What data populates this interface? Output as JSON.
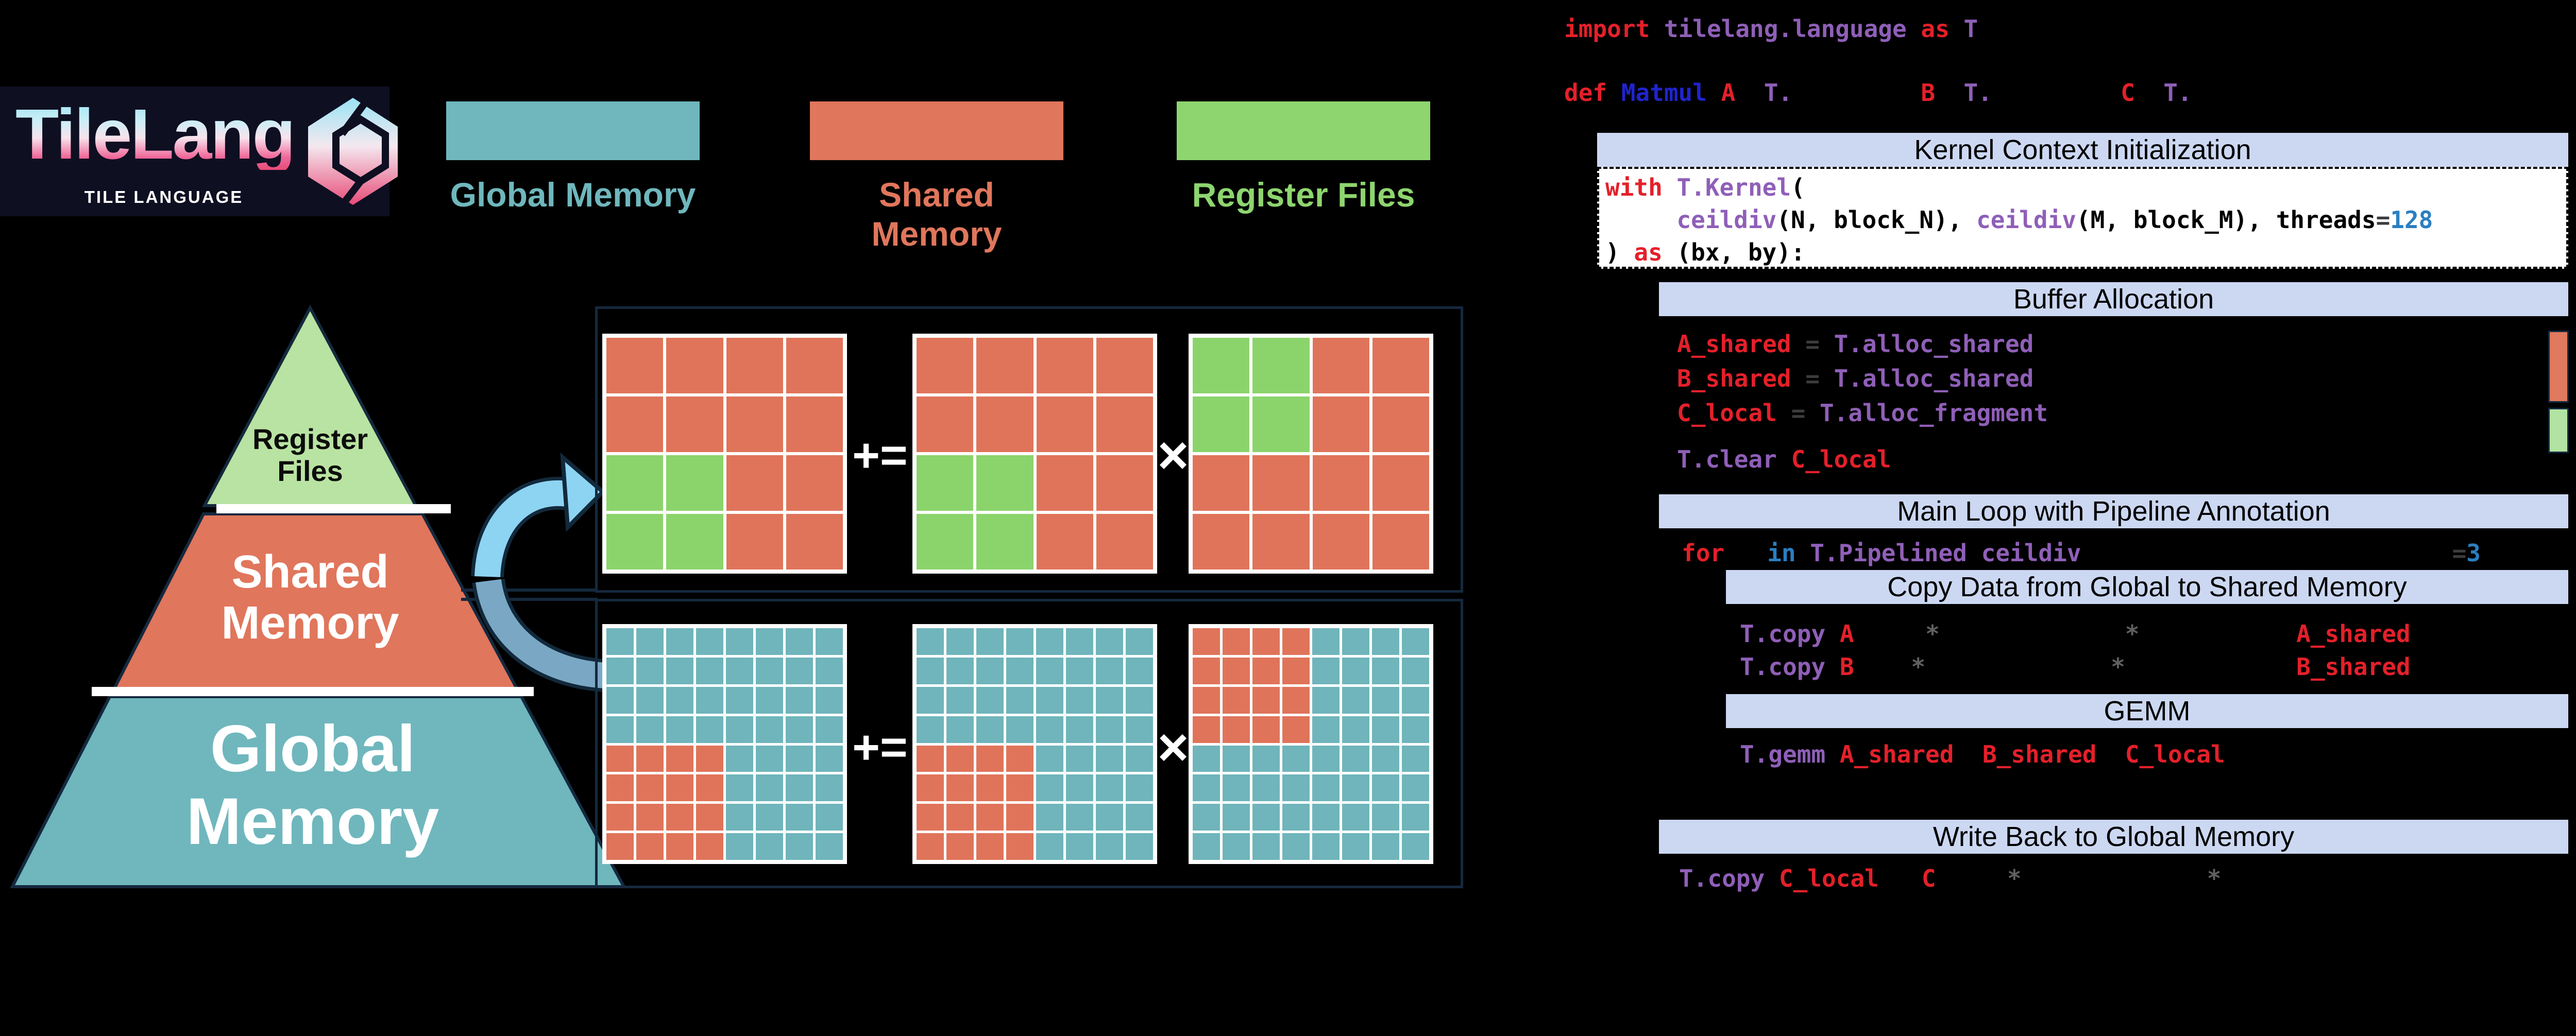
{
  "logo": {
    "title": "TileLang",
    "subtitle": "TILE LANGUAGE"
  },
  "legend": {
    "items": [
      {
        "label": "Global Memory",
        "color": "#6fb7bd"
      },
      {
        "label": "Shared Memory",
        "color": "#e0765c"
      },
      {
        "label": "Register Files",
        "color": "#8ed56f"
      }
    ]
  },
  "pyramid": {
    "levels": [
      {
        "label": "Register Files",
        "color": "#b9e3a2"
      },
      {
        "label": "Shared Memory",
        "color": "#e0765c"
      },
      {
        "label": "Global Memory",
        "color": "#6fb7bd"
      }
    ]
  },
  "diagram": {
    "operators": {
      "accumulate": "+=",
      "multiply": "×"
    },
    "cell_colors": {
      "S": "#e0745a",
      "G": "#8bd46b",
      "T": "#6fb5bb"
    },
    "top_row": {
      "matrices": [
        [
          "SSSS",
          "SSSS",
          "GGSS",
          "GGSS"
        ],
        [
          "SSSS",
          "SSSS",
          "GGSS",
          "GGSS"
        ],
        [
          "GGSS",
          "GGSS",
          "SSSS",
          "SSSS"
        ]
      ]
    },
    "bottom_row": {
      "matrices": [
        [
          "TTTTTTTT",
          "TTTTTTTT",
          "TTTTTTTT",
          "TTTTTTTT",
          "SSSSTTTT",
          "SSSSTTTT",
          "SSSSTTTT",
          "SSSSTTTT"
        ],
        [
          "TTTTTTTT",
          "TTTTTTTT",
          "TTTTTTTT",
          "TTTTTTTT",
          "SSSSTTTT",
          "SSSSTTTT",
          "SSSSTTTT",
          "SSSSTTTT"
        ],
        [
          "SSSSTTTT",
          "SSSSTTTT",
          "SSSSTTTT",
          "SSSSTTTT",
          "TTTTTTTT",
          "TTTTTTTT",
          "TTTTTTTT",
          "TTTTTTTT"
        ]
      ]
    }
  },
  "code": {
    "sections": {
      "kernel": "Kernel Context Initialization",
      "buffer": "Buffer Allocation",
      "mainloop": "Main Loop with Pipeline Annotation",
      "copy": "Copy Data from Global to Shared Memory",
      "gemm": "GEMM",
      "writeback": "Write Back to Global Memory"
    },
    "buffer_bars": [
      {
        "name": "shared-memory-bar",
        "color": "#e0795e"
      },
      {
        "name": "register-file-bar",
        "color": "#b2e3a2"
      }
    ],
    "lines": {
      "import": [
        {
          "t": "import ",
          "c": "red"
        },
        {
          "t": "tilelang.language ",
          "c": "purple"
        },
        {
          "t": "as ",
          "c": "red"
        },
        {
          "t": "T",
          "c": "purple"
        }
      ],
      "def": [
        {
          "t": "def ",
          "c": "red"
        },
        {
          "t": "Matmul ",
          "c": "blue"
        },
        {
          "t": "A",
          "c": "red"
        },
        {
          "t": "  ",
          "c": "plain"
        },
        {
          "t": "T.",
          "c": "purple"
        },
        {
          "t": "         ",
          "c": "plain"
        },
        {
          "t": "B",
          "c": "red"
        },
        {
          "t": "  ",
          "c": "plain"
        },
        {
          "t": "T.",
          "c": "purple"
        },
        {
          "t": "         ",
          "c": "plain"
        },
        {
          "t": "C",
          "c": "red"
        },
        {
          "t": "  ",
          "c": "plain"
        },
        {
          "t": "T.",
          "c": "purple"
        }
      ],
      "kci1": [
        {
          "t": "with ",
          "c": "red"
        },
        {
          "t": "T.Kernel",
          "c": "purple"
        },
        {
          "t": "(",
          "c": "black"
        }
      ],
      "kci2": [
        {
          "t": "     ",
          "c": "plain"
        },
        {
          "t": "ceildiv",
          "c": "purple"
        },
        {
          "t": "(N, block_N), ",
          "c": "black"
        },
        {
          "t": "ceildiv",
          "c": "purple"
        },
        {
          "t": "(M, block_M), threads",
          "c": "black"
        },
        {
          "t": "=",
          "c": "dgray"
        },
        {
          "t": "128",
          "c": "lblue"
        }
      ],
      "kci3": [
        {
          "t": ") ",
          "c": "black"
        },
        {
          "t": "as ",
          "c": "red"
        },
        {
          "t": "(bx, by):",
          "c": "black"
        }
      ],
      "a_shared": [
        {
          "t": "A_shared ",
          "c": "red"
        },
        {
          "t": "= ",
          "c": "dgray"
        },
        {
          "t": "T.alloc_shared",
          "c": "purple"
        }
      ],
      "b_shared": [
        {
          "t": "B_shared ",
          "c": "red"
        },
        {
          "t": "= ",
          "c": "dgray"
        },
        {
          "t": "T.alloc_shared",
          "c": "purple"
        }
      ],
      "c_local": [
        {
          "t": "C_local ",
          "c": "red"
        },
        {
          "t": "= ",
          "c": "dgray"
        },
        {
          "t": "T.alloc_fragment",
          "c": "purple"
        }
      ],
      "t_clear": [
        {
          "t": "T.clear ",
          "c": "purple"
        },
        {
          "t": "C_local",
          "c": "red"
        }
      ],
      "for": [
        {
          "t": "for",
          "c": "red"
        },
        {
          "t": "   ",
          "c": "plain"
        },
        {
          "t": "in ",
          "c": "lblue"
        },
        {
          "t": "T.Pipelined ",
          "c": "purple"
        },
        {
          "t": "ceildiv",
          "c": "purple"
        },
        {
          "t": "                          ",
          "c": "plain"
        },
        {
          "t": "=",
          "c": "dgray"
        },
        {
          "t": "3",
          "c": "lblue"
        }
      ],
      "copy_a": [
        {
          "t": "T.copy ",
          "c": "purple"
        },
        {
          "t": "A",
          "c": "red"
        },
        {
          "t": "     ",
          "c": "plain"
        },
        {
          "t": "*",
          "c": "gray"
        },
        {
          "t": "             ",
          "c": "plain"
        },
        {
          "t": "*",
          "c": "gray"
        },
        {
          "t": "           ",
          "c": "plain"
        },
        {
          "t": "A_shared",
          "c": "red"
        }
      ],
      "copy_b": [
        {
          "t": "T.copy ",
          "c": "purple"
        },
        {
          "t": "B",
          "c": "red"
        },
        {
          "t": "    ",
          "c": "plain"
        },
        {
          "t": "*",
          "c": "gray"
        },
        {
          "t": "             ",
          "c": "plain"
        },
        {
          "t": "*",
          "c": "gray"
        },
        {
          "t": "            ",
          "c": "plain"
        },
        {
          "t": "B_shared",
          "c": "red"
        }
      ],
      "gemm": [
        {
          "t": "T.gemm ",
          "c": "purple"
        },
        {
          "t": "A_shared",
          "c": "red"
        },
        {
          "t": "  ",
          "c": "plain"
        },
        {
          "t": "B_shared",
          "c": "red"
        },
        {
          "t": "  ",
          "c": "plain"
        },
        {
          "t": "C_local",
          "c": "red"
        }
      ],
      "copy_c": [
        {
          "t": "T.copy ",
          "c": "purple"
        },
        {
          "t": "C_local",
          "c": "red"
        },
        {
          "t": "   ",
          "c": "plain"
        },
        {
          "t": "C",
          "c": "red"
        },
        {
          "t": "     ",
          "c": "plain"
        },
        {
          "t": "*",
          "c": "gray"
        },
        {
          "t": "             ",
          "c": "plain"
        },
        {
          "t": "*",
          "c": "gray"
        }
      ]
    }
  }
}
